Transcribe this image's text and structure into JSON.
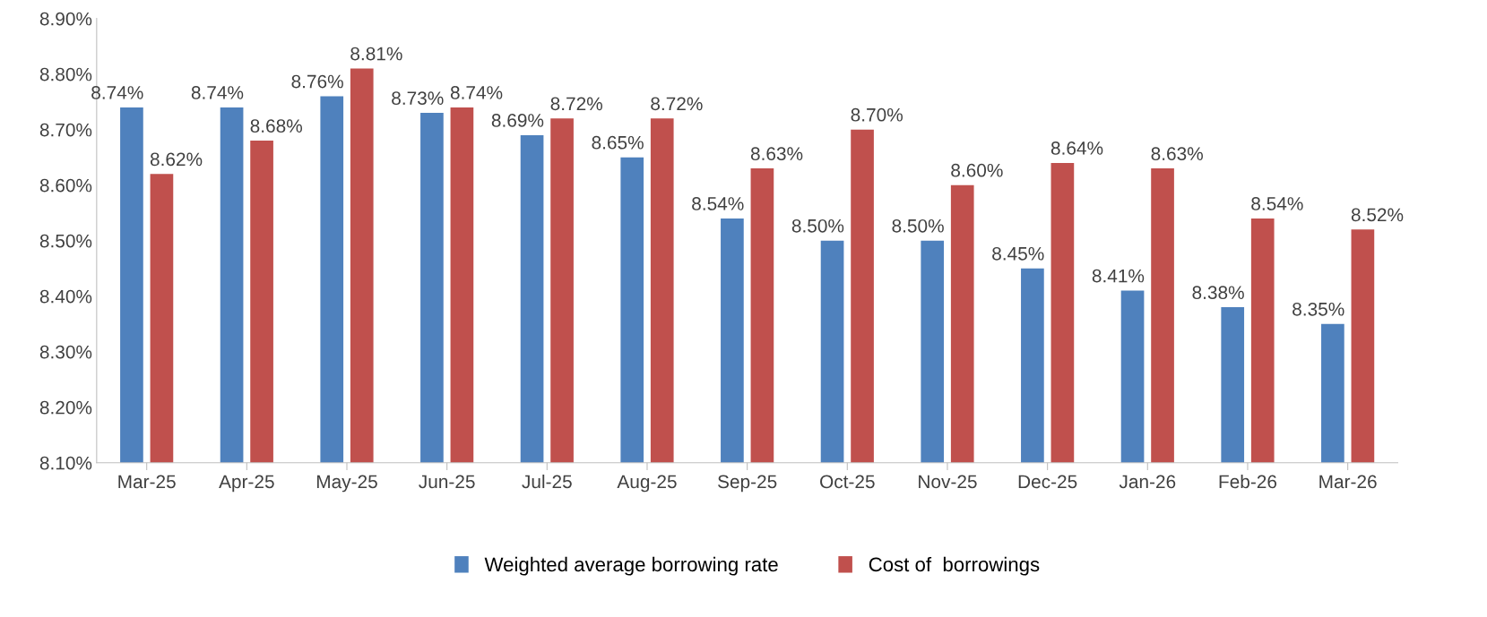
{
  "chart_data": {
    "type": "bar",
    "categories": [
      "Mar-25",
      "Apr-25",
      "May-25",
      "Jun-25",
      "Jul-25",
      "Aug-25",
      "Sep-25",
      "Oct-25",
      "Nov-25",
      "Dec-25",
      "Jan-26",
      "Feb-26",
      "Mar-26"
    ],
    "series": [
      {
        "name": "Weighted average borrowing rate",
        "color": "#4f81bd",
        "values": [
          8.74,
          8.74,
          8.76,
          8.73,
          8.69,
          8.65,
          8.54,
          8.5,
          8.5,
          8.45,
          8.41,
          8.38,
          8.35
        ],
        "value_labels": [
          "8.74%",
          "8.74%",
          "8.76%",
          "8.73%",
          "8.69%",
          "8.65%",
          "8.54%",
          "8.50%",
          "8.50%",
          "8.45%",
          "8.41%",
          "8.38%",
          "8.35%"
        ]
      },
      {
        "name": "Cost of  borrowings",
        "color": "#c0504d",
        "values": [
          8.62,
          8.68,
          8.81,
          8.74,
          8.72,
          8.72,
          8.63,
          8.7,
          8.6,
          8.64,
          8.63,
          8.54,
          8.52
        ],
        "value_labels": [
          "8.62%",
          "8.68%",
          "8.81%",
          "8.74%",
          "8.72%",
          "8.72%",
          "8.63%",
          "8.70%",
          "8.60%",
          "8.64%",
          "8.63%",
          "8.54%",
          "8.52%"
        ]
      }
    ],
    "ylim": [
      8.1,
      8.9
    ],
    "yticks": [
      {
        "value": 8.1,
        "label": "8.10%"
      },
      {
        "value": 8.2,
        "label": "8.20%"
      },
      {
        "value": 8.3,
        "label": "8.30%"
      },
      {
        "value": 8.4,
        "label": "8.40%"
      },
      {
        "value": 8.5,
        "label": "8.50%"
      },
      {
        "value": 8.6,
        "label": "8.60%"
      },
      {
        "value": 8.7,
        "label": "8.70%"
      },
      {
        "value": 8.8,
        "label": "8.80%"
      },
      {
        "value": 8.9,
        "label": "8.90%"
      }
    ],
    "grid": false,
    "legend": "bottom"
  }
}
